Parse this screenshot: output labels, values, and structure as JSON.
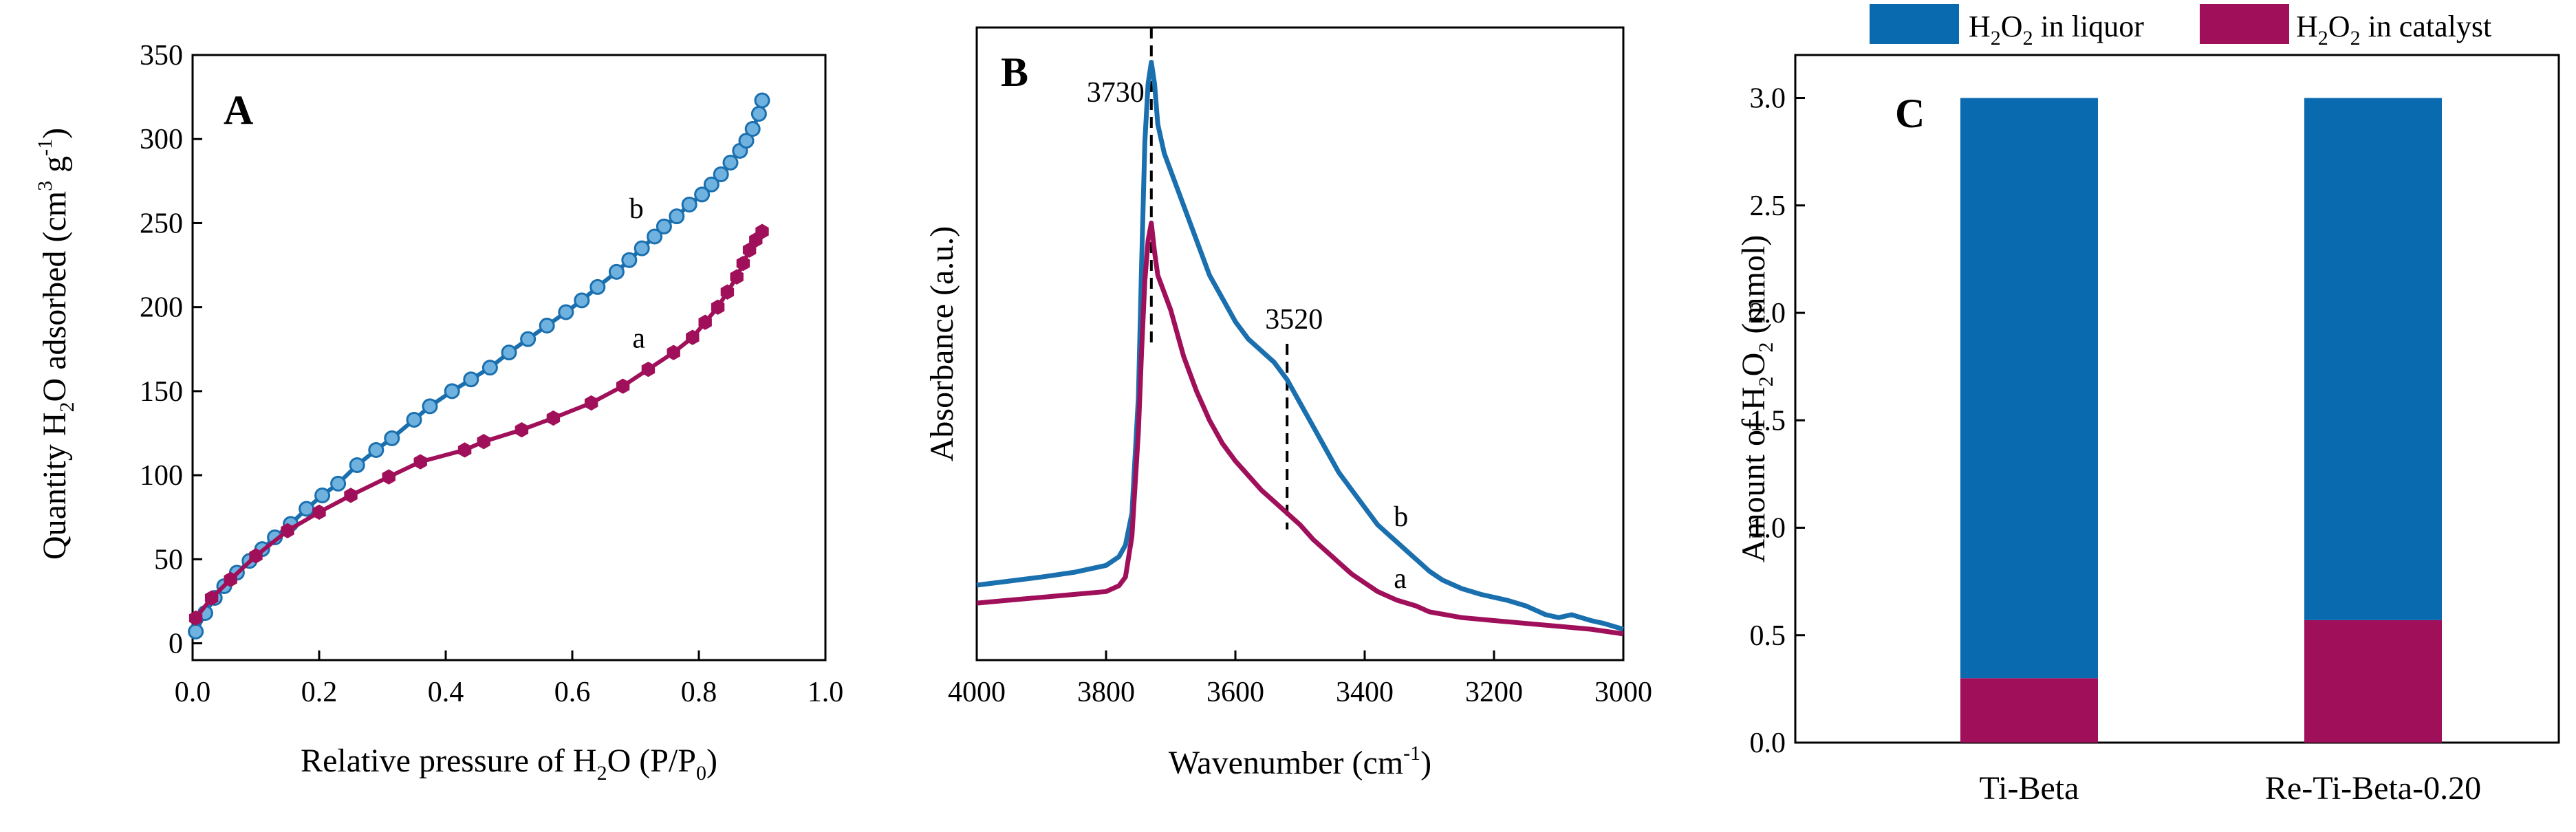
{
  "chart_data": [
    {
      "type": "line",
      "panel_label": "A",
      "xlabel": {
        "pre": "Relative pressure of H",
        "s1": "2",
        "mid": "O (P/P",
        "s2": "0",
        "post": ")"
      },
      "ylabel": {
        "pre": "Quantity H",
        "s1": "2",
        "mid": "O adsorbed (cm",
        "sup1": "3",
        "mid2": " g",
        "sup2": "-1",
        "post": ")"
      },
      "xlim": [
        0.0,
        1.0
      ],
      "ylim": [
        -10,
        350
      ],
      "xticks": [
        "0.0",
        "0.2",
        "0.4",
        "0.6",
        "0.8",
        "1.0"
      ],
      "yticks": [
        "0",
        "50",
        "100",
        "150",
        "200",
        "250",
        "300",
        "350"
      ],
      "series": [
        {
          "name": "b",
          "color": "#1a6fae",
          "marker": "circle",
          "x": [
            0.005,
            0.02,
            0.035,
            0.05,
            0.07,
            0.09,
            0.11,
            0.13,
            0.155,
            0.18,
            0.205,
            0.23,
            0.26,
            0.29,
            0.315,
            0.35,
            0.375,
            0.41,
            0.44,
            0.47,
            0.5,
            0.53,
            0.56,
            0.59,
            0.615,
            0.64,
            0.67,
            0.69,
            0.71,
            0.73,
            0.745,
            0.765,
            0.785,
            0.805,
            0.82,
            0.835,
            0.85,
            0.865,
            0.875,
            0.885,
            0.895,
            0.9
          ],
          "y": [
            7,
            18,
            27,
            34,
            42,
            49,
            56,
            63,
            71,
            80,
            88,
            95,
            106,
            115,
            122,
            133,
            141,
            150,
            157,
            164,
            173,
            181,
            189,
            197,
            204,
            212,
            221,
            228,
            235,
            242,
            248,
            254,
            261,
            267,
            273,
            279,
            286,
            293,
            299,
            306,
            315,
            323
          ]
        },
        {
          "name": "a",
          "color": "#a0105a",
          "marker": "hexagon",
          "x": [
            0.005,
            0.03,
            0.06,
            0.1,
            0.15,
            0.2,
            0.25,
            0.31,
            0.36,
            0.43,
            0.46,
            0.52,
            0.57,
            0.63,
            0.68,
            0.72,
            0.76,
            0.79,
            0.81,
            0.83,
            0.845,
            0.86,
            0.87,
            0.88,
            0.89,
            0.9
          ],
          "y": [
            15,
            27,
            38,
            52,
            67,
            78,
            88,
            99,
            108,
            115,
            120,
            127,
            134,
            143,
            153,
            163,
            173,
            182,
            191,
            200,
            209,
            218,
            226,
            234,
            240,
            245
          ]
        }
      ]
    },
    {
      "type": "line",
      "panel_label": "B",
      "xlabel": {
        "pre": "Wavenumber (cm",
        "sup": "-1",
        "post": ")"
      },
      "ylabel": "Absorbance (a.u.)",
      "xlim": [
        4000,
        3000
      ],
      "ylim": [
        0,
        1
      ],
      "xticks": [
        "4000",
        "3800",
        "3600",
        "3400",
        "3200",
        "3000"
      ],
      "annotations": [
        {
          "label": "3730",
          "x": 3730
        },
        {
          "label": "3520",
          "x": 3520
        }
      ],
      "series": [
        {
          "name": "b",
          "color": "#1a6fae",
          "x": [
            4000,
            3950,
            3900,
            3850,
            3800,
            3780,
            3770,
            3760,
            3750,
            3745,
            3740,
            3735,
            3730,
            3725,
            3720,
            3710,
            3700,
            3680,
            3660,
            3640,
            3620,
            3600,
            3580,
            3560,
            3540,
            3520,
            3500,
            3480,
            3460,
            3440,
            3420,
            3400,
            3380,
            3360,
            3340,
            3320,
            3300,
            3280,
            3250,
            3220,
            3200,
            3180,
            3150,
            3120,
            3100,
            3080,
            3050,
            3030,
            3000
          ],
          "y": [
            0.096,
            0.103,
            0.11,
            0.118,
            0.13,
            0.145,
            0.165,
            0.22,
            0.42,
            0.65,
            0.86,
            0.96,
            0.997,
            0.96,
            0.89,
            0.84,
            0.81,
            0.75,
            0.69,
            0.63,
            0.59,
            0.55,
            0.52,
            0.5,
            0.48,
            0.45,
            0.41,
            0.37,
            0.33,
            0.29,
            0.26,
            0.23,
            0.2,
            0.18,
            0.16,
            0.14,
            0.12,
            0.105,
            0.09,
            0.08,
            0.075,
            0.07,
            0.06,
            0.045,
            0.04,
            0.045,
            0.035,
            0.03,
            0.02
          ]
        },
        {
          "name": "a",
          "color": "#a0105a",
          "x": [
            4000,
            3950,
            3900,
            3850,
            3800,
            3780,
            3770,
            3760,
            3750,
            3745,
            3740,
            3735,
            3730,
            3725,
            3720,
            3710,
            3700,
            3690,
            3680,
            3660,
            3640,
            3620,
            3600,
            3580,
            3560,
            3540,
            3520,
            3500,
            3480,
            3460,
            3440,
            3420,
            3400,
            3380,
            3350,
            3320,
            3300,
            3250,
            3200,
            3150,
            3100,
            3050,
            3000
          ],
          "y": [
            0.065,
            0.07,
            0.075,
            0.08,
            0.085,
            0.095,
            0.11,
            0.18,
            0.36,
            0.5,
            0.62,
            0.69,
            0.72,
            0.67,
            0.63,
            0.6,
            0.57,
            0.53,
            0.49,
            0.43,
            0.38,
            0.34,
            0.31,
            0.285,
            0.26,
            0.24,
            0.22,
            0.2,
            0.175,
            0.155,
            0.135,
            0.115,
            0.1,
            0.085,
            0.07,
            0.06,
            0.05,
            0.04,
            0.035,
            0.03,
            0.025,
            0.02,
            0.012
          ]
        }
      ]
    },
    {
      "type": "bar",
      "stacked": true,
      "panel_label": "C",
      "categories": [
        "Ti-Beta",
        "Re-Ti-Beta-0.20"
      ],
      "ylabel": {
        "pre": "Amount of H",
        "s1": "2",
        "mid": "O",
        "s2": "2",
        "post": " (mmol)"
      },
      "ylim": [
        0.0,
        3.2
      ],
      "yticks": [
        "0.0",
        "0.5",
        "1.0",
        "1.5",
        "2.0",
        "2.5",
        "3.0"
      ],
      "series": [
        {
          "name": "H2O2 in catalyst",
          "legend": {
            "pre": "H",
            "s1": "2",
            "mid": "O",
            "s2": "2",
            "post": " in catalyst"
          },
          "color": "#a0105a",
          "values": [
            0.3,
            0.57
          ]
        },
        {
          "name": "H2O2 in liquor",
          "legend": {
            "pre": "H",
            "s1": "2",
            "mid": "O",
            "s2": "2",
            "post": " in liquor"
          },
          "color": "#0a6aaf",
          "values": [
            2.7,
            2.43
          ]
        }
      ],
      "legend_position": "top"
    }
  ]
}
